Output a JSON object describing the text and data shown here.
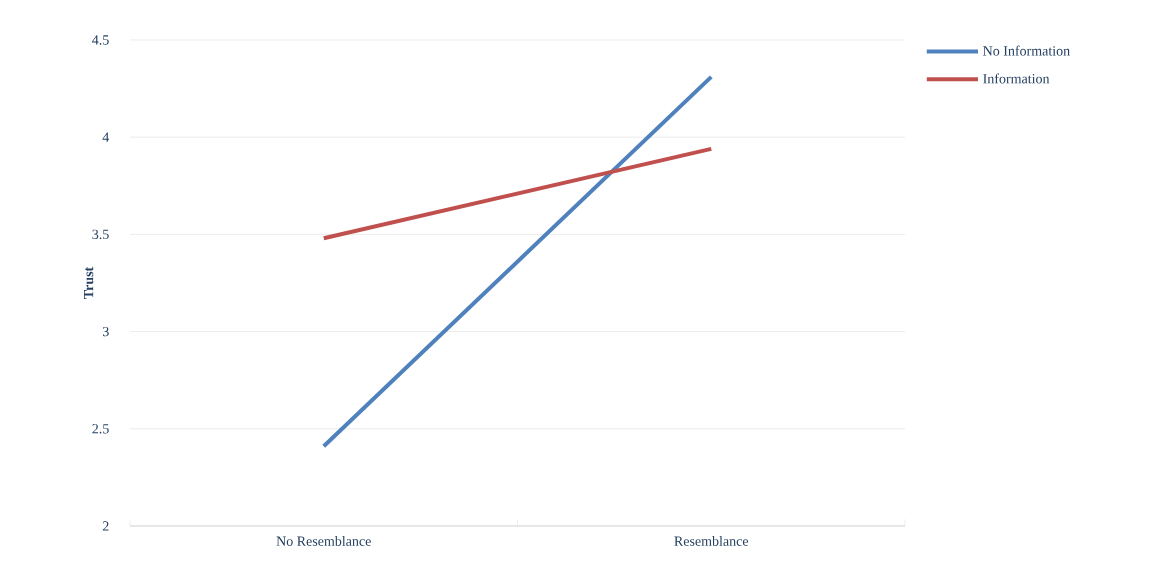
{
  "chart_data": {
    "type": "line",
    "ylabel": "Trust",
    "categories": [
      "No Resemblance",
      "Resemblance"
    ],
    "series": [
      {
        "name": "No Information",
        "color": "#4f81bd",
        "values": [
          2.41,
          4.31
        ]
      },
      {
        "name": "Information",
        "color": "#c0504d",
        "values": [
          3.48,
          3.94
        ]
      }
    ],
    "ylim": [
      2,
      4.5
    ],
    "yticks": [
      2,
      2.5,
      3,
      3.5,
      4,
      4.5
    ],
    "grid": "y",
    "legend": "top right"
  }
}
